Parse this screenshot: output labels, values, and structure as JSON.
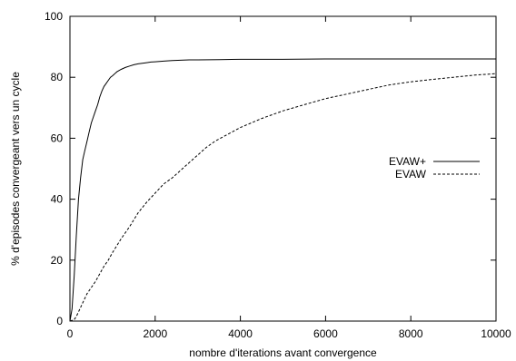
{
  "chart_data": {
    "type": "line",
    "title": "",
    "xlabel": "nombre d'iterations avant convergence",
    "ylabel": "% d'episodes convergeant vers un cycle",
    "xlim": [
      0,
      10000
    ],
    "ylim": [
      0,
      100
    ],
    "xticks": [
      0,
      2000,
      4000,
      6000,
      8000,
      10000
    ],
    "yticks": [
      0,
      20,
      40,
      60,
      80,
      100
    ],
    "grid": false,
    "legend_position": "right",
    "series": [
      {
        "name": "EVAW+",
        "style": "solid",
        "color": "#000000",
        "x": [
          0,
          50,
          100,
          150,
          200,
          250,
          300,
          350,
          400,
          450,
          500,
          550,
          600,
          650,
          700,
          750,
          800,
          850,
          900,
          950,
          1000,
          1100,
          1200,
          1300,
          1400,
          1500,
          1600,
          1700,
          1800,
          1900,
          2000,
          2200,
          2400,
          2600,
          2800,
          3000,
          3500,
          4000,
          5000,
          6000,
          7000,
          8000,
          9000,
          10000
        ],
        "y": [
          0,
          4,
          15,
          28,
          40,
          47,
          53,
          56,
          59,
          62,
          65,
          67,
          69,
          71,
          73.5,
          75.5,
          77,
          78,
          79,
          80,
          80.5,
          81.8,
          82.6,
          83.2,
          83.7,
          84.1,
          84.4,
          84.6,
          84.8,
          85,
          85.1,
          85.3,
          85.5,
          85.6,
          85.7,
          85.7,
          85.8,
          85.9,
          85.9,
          86,
          86,
          86,
          86,
          86
        ]
      },
      {
        "name": "EVAW",
        "style": "dashed",
        "color": "#000000",
        "x": [
          0,
          100,
          150,
          200,
          300,
          400,
          500,
          600,
          700,
          800,
          900,
          1000,
          1200,
          1400,
          1600,
          1800,
          2000,
          2200,
          2400,
          2600,
          2800,
          3000,
          3200,
          3400,
          3600,
          3800,
          4000,
          4500,
          5000,
          5500,
          6000,
          6500,
          7000,
          7500,
          8000,
          8500,
          9000,
          9500,
          10000
        ],
        "y": [
          0,
          0.5,
          1.5,
          3,
          6,
          9,
          11,
          13,
          15.5,
          18,
          20,
          22.5,
          27,
          31,
          35.5,
          39,
          42,
          45,
          47,
          49.5,
          52,
          54.5,
          57,
          59,
          60.5,
          62,
          63.5,
          66.5,
          69,
          71,
          73,
          74.5,
          76,
          77.5,
          78.5,
          79.3,
          80,
          80.7,
          81.2
        ]
      }
    ]
  }
}
